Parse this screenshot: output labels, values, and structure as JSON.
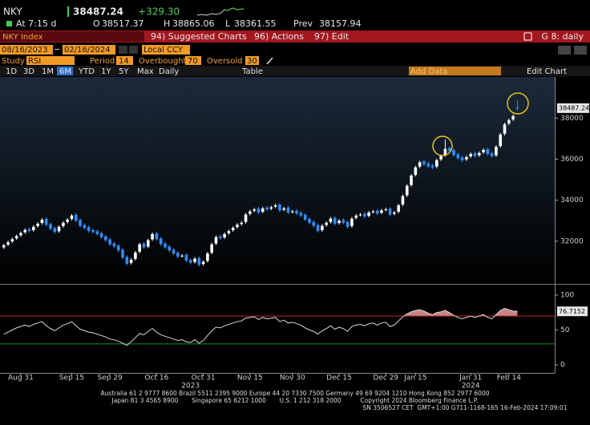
{
  "header": {
    "ticker": "NKY",
    "change": "+329.30",
    "time": "At 7:15 d",
    "open_label": "O",
    "high_label": "H",
    "low_label": "L",
    "prev_label": "Prev",
    "prev": 38157.94
  },
  "toolbar": {
    "security": "NKY Index",
    "items": [
      "94) Suggested Charts",
      "96) Actions",
      "97) Edit"
    ],
    "chart_id": "G 8: daily"
  },
  "range": {
    "start": "08/16/2023",
    "end": "02/16/2024",
    "currency": "Local CCY"
  },
  "study": {
    "label": "Study",
    "name": "RSI",
    "period_label": "Period",
    "period": 14,
    "overbought_label": "Overbought",
    "overbought": 70,
    "oversold_label": "Oversold",
    "oversold": 30
  },
  "periods": [
    "1D",
    "3D",
    "1M",
    "6M",
    "YTD",
    "1Y",
    "5Y",
    "Max"
  ],
  "frequency": "Daily",
  "table": "Table",
  "add_data": "Add Data",
  "edit_chart": "Edit Chart",
  "footer": [
    "Australia 61 2 9777 8600 Brazil 5511 2395 9000 Europe 44 20 7330 7500 Germany 49 69 9204 1210 Hong Kong 852 2977 6000",
    "Japan 81 3 4565 8900       Singapore 65 6212 1000       U.S. 1 212 318 2000          Copyright 2024 Bloomberg Finance L.P.",
    "SN 3506527 CET  GMT+1:00 G711-1168-165 16-Feb-2024 17:09:01"
  ],
  "chart_data": {
    "type": "candlestick",
    "up_color": "#ffffff",
    "down_color": "#2f8cff",
    "rsi_color": "#d8d8d8",
    "overbought_color": "#c0262b",
    "oversold_color": "#1d8a2a",
    "overbought_fill": "#c98585",
    "xlim": [
      -0.9,
      129.8
    ],
    "xticks": [
      {
        "value": 4,
        "label": "Aug 31"
      },
      {
        "value": 16,
        "label": "Sep 15"
      },
      {
        "value": 25,
        "label": "Sep 29"
      },
      {
        "value": 36,
        "label": "Oct 16"
      },
      {
        "value": 47,
        "label": "Oct 31"
      },
      {
        "value": 58,
        "label": "Nov 15"
      },
      {
        "value": 68,
        "label": "Nov 30"
      },
      {
        "value": 79,
        "label": "Dec 15"
      },
      {
        "value": 90,
        "label": "Dec 29"
      },
      {
        "value": 97,
        "label": "Jan 15"
      },
      {
        "value": 110,
        "label": "Jan 31"
      },
      {
        "value": 119,
        "label": "Feb 14"
      }
    ],
    "years": [
      {
        "value": 44,
        "label": "2023"
      },
      {
        "value": 110,
        "label": "2024"
      }
    ],
    "ylim": [
      30000,
      39850
    ],
    "yticks": [
      32000,
      34000,
      36000,
      38000
    ],
    "rsi_ylim": [
      -11.5,
      113.8
    ],
    "rsi_yticks": [
      0,
      50,
      100
    ],
    "open": [
      31700,
      31840,
      31990,
      32140,
      32290,
      32440,
      32590,
      32540,
      32740,
      32890,
      33090,
      32840,
      32640,
      32490,
      32740,
      32940,
      33090,
      33290,
      33040,
      32790,
      32690,
      32540,
      32490,
      32390,
      32240,
      32090,
      31890,
      31790,
      31590,
      31240,
      30940,
      31140,
      31490,
      31890,
      31740,
      32090,
      32390,
      32140,
      31890,
      31740,
      31590,
      31440,
      31290,
      31340,
      31090,
      30990,
      31190,
      30890,
      31040,
      31440,
      31890,
      32240,
      32190,
      32390,
      32540,
      32690,
      32840,
      32940,
      33340,
      33490,
      33590,
      33440,
      33640,
      33590,
      33690,
      33790,
      33540,
      33640,
      33440,
      33490,
      33390,
      33290,
      33090,
      32940,
      32790,
      32540,
      32790,
      32940,
      33140,
      32890,
      33040,
      32940,
      32740,
      33140,
      33290,
      33340,
      33240,
      33440,
      33490,
      33390,
      33540,
      33590,
      33340,
      33440,
      33790,
      34240,
      34740,
      35240,
      35640,
      35890,
      35790,
      35690,
      35640,
      35990,
      36190,
      36540,
      36440,
      36240,
      36090,
      35990,
      36140,
      36290,
      36190,
      36340,
      36490,
      36290,
      36190,
      36640,
      37240,
      37740,
      37940,
      38517.37
    ],
    "high": [
      31880,
      32030,
      32180,
      32330,
      32480,
      32630,
      32670,
      32780,
      32930,
      33130,
      33170,
      32920,
      32720,
      32780,
      32980,
      33130,
      33330,
      33370,
      33120,
      32870,
      32770,
      32620,
      32570,
      32470,
      32320,
      32170,
      31970,
      31870,
      31670,
      31320,
      31180,
      31530,
      31930,
      31970,
      32130,
      32430,
      32470,
      32220,
      31970,
      31820,
      31670,
      31520,
      31380,
      31420,
      31170,
      31230,
      31270,
      31080,
      31480,
      31930,
      32280,
      32320,
      32430,
      32580,
      32730,
      32880,
      32980,
      33380,
      33530,
      33630,
      33670,
      33680,
      33720,
      33730,
      33830,
      33870,
      33680,
      33720,
      33530,
      33570,
      33470,
      33370,
      33170,
      33020,
      32870,
      32830,
      32980,
      33180,
      33220,
      33080,
      33120,
      33020,
      33180,
      33330,
      33380,
      33420,
      33480,
      33530,
      33570,
      33580,
      33630,
      33670,
      33480,
      33830,
      34280,
      34780,
      35280,
      35680,
      35930,
      35970,
      35870,
      35770,
      36030,
      36230,
      36950,
      36620,
      36520,
      36320,
      36170,
      36180,
      36330,
      36370,
      36380,
      36530,
      36570,
      36370,
      36680,
      37280,
      37780,
      37980,
      38180,
      38865.06
    ],
    "low": [
      31620,
      31760,
      31910,
      32060,
      32210,
      32360,
      32420,
      32460,
      32660,
      32810,
      32720,
      32520,
      32370,
      32410,
      32660,
      32860,
      33010,
      32920,
      32670,
      32570,
      32420,
      32370,
      32270,
      32120,
      31970,
      31770,
      31670,
      31470,
      31120,
      30820,
      30860,
      31060,
      31410,
      31620,
      31660,
      32010,
      32020,
      31770,
      31620,
      31470,
      31320,
      31170,
      31210,
      30970,
      30870,
      30910,
      30770,
      30810,
      30960,
      31360,
      31810,
      32070,
      32110,
      32310,
      32460,
      32610,
      32760,
      32860,
      33260,
      33410,
      33320,
      33360,
      33470,
      33510,
      33610,
      33420,
      33460,
      33320,
      33360,
      33270,
      33170,
      32970,
      32820,
      32670,
      32420,
      32460,
      32710,
      32860,
      32770,
      32810,
      32820,
      32620,
      32660,
      33060,
      33210,
      33120,
      33160,
      33360,
      33270,
      33310,
      33460,
      33220,
      33260,
      33360,
      33710,
      34160,
      34660,
      35160,
      35560,
      35670,
      35570,
      35520,
      35560,
      35910,
      36110,
      36320,
      36120,
      35970,
      35870,
      35910,
      36060,
      36070,
      36110,
      36260,
      36170,
      36070,
      36110,
      36560,
      37160,
      37660,
      37860,
      38361.55
    ],
    "close": [
      31800,
      31950,
      32100,
      32250,
      32400,
      32550,
      32500,
      32700,
      32850,
      33050,
      32800,
      32600,
      32450,
      32700,
      32900,
      33050,
      33250,
      33000,
      32750,
      32650,
      32500,
      32450,
      32350,
      32200,
      32050,
      31850,
      31750,
      31550,
      31200,
      30900,
      31100,
      31450,
      31850,
      31700,
      32050,
      32350,
      32100,
      31850,
      31700,
      31550,
      31400,
      31250,
      31300,
      31050,
      30950,
      31150,
      30850,
      31000,
      31400,
      31850,
      32200,
      32150,
      32350,
      32500,
      32650,
      32800,
      32900,
      33300,
      33450,
      33550,
      33400,
      33600,
      33550,
      33650,
      33750,
      33500,
      33600,
      33400,
      33450,
      33350,
      33250,
      33050,
      32900,
      32750,
      32500,
      32750,
      32900,
      33100,
      32850,
      33000,
      32900,
      32700,
      33100,
      33250,
      33300,
      33200,
      33400,
      33450,
      33350,
      33500,
      33550,
      33300,
      33400,
      33750,
      34200,
      34700,
      35200,
      35600,
      35850,
      35750,
      35650,
      35600,
      35950,
      36150,
      36500,
      36400,
      36200,
      36050,
      35950,
      36100,
      36250,
      36150,
      36300,
      36450,
      36250,
      36150,
      36600,
      37200,
      37700,
      37900,
      38100,
      38487.24
    ],
    "rsi": [
      44,
      47,
      50,
      53,
      55,
      57,
      55,
      58,
      60,
      62,
      56,
      52,
      49,
      53,
      57,
      59,
      62,
      56,
      51,
      49,
      47,
      46,
      44,
      42,
      40,
      37,
      36,
      34,
      31,
      28,
      33,
      39,
      45,
      43,
      48,
      52,
      47,
      43,
      41,
      39,
      37,
      35,
      36,
      33,
      32,
      36,
      31,
      35,
      42,
      49,
      54,
      53,
      56,
      58,
      60,
      62,
      63,
      67,
      68,
      69,
      65,
      68,
      66,
      67,
      68,
      62,
      64,
      60,
      61,
      59,
      57,
      53,
      50,
      48,
      44,
      49,
      52,
      56,
      51,
      54,
      52,
      48,
      55,
      57,
      58,
      56,
      59,
      60,
      57,
      60,
      61,
      55,
      57,
      63,
      69,
      73,
      76,
      78,
      79,
      77,
      74,
      72,
      75,
      76,
      78,
      75,
      71,
      68,
      66,
      68,
      70,
      68,
      70,
      72,
      68,
      66,
      72,
      78,
      81,
      79,
      77,
      76.7152
    ]
  }
}
